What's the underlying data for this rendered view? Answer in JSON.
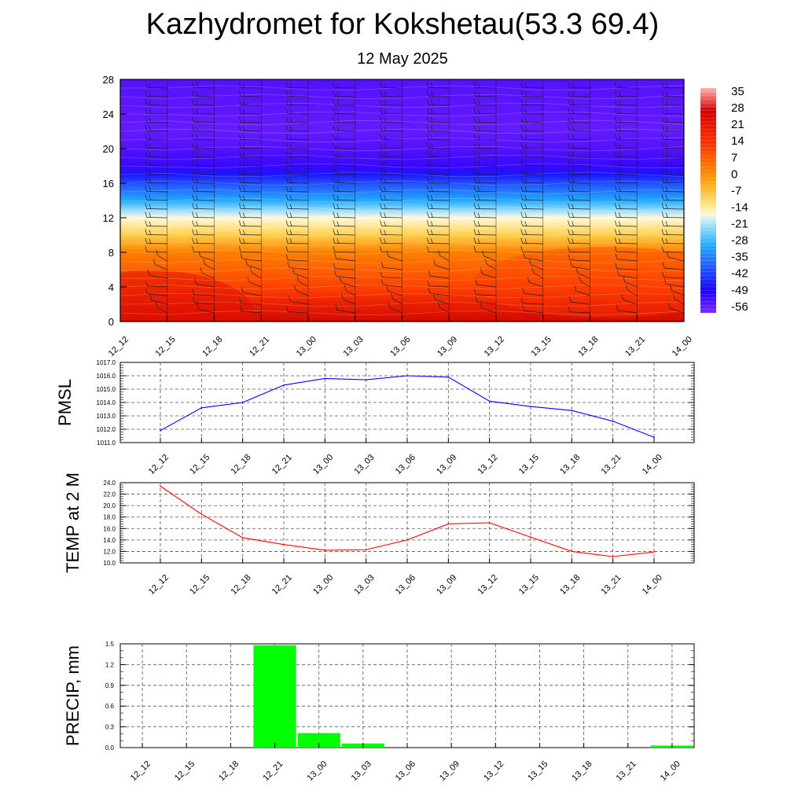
{
  "header": {
    "title": "Kazhydromet for Kokshetau(53.3 69.4)",
    "subtitle": "12 May 2025"
  },
  "time_labels": [
    "12_12",
    "12_15",
    "12_18",
    "12_21",
    "13_00",
    "13_03",
    "13_06",
    "13_09",
    "13_12",
    "13_15",
    "13_18",
    "13_21",
    "14_00"
  ],
  "chart_data": [
    {
      "type": "heatmap",
      "name": "temperature-wind cross-section",
      "x": [
        "12_12",
        "12_15",
        "12_18",
        "12_21",
        "13_00",
        "13_03",
        "13_06",
        "13_09",
        "13_12",
        "13_15",
        "13_18",
        "13_21",
        "14_00"
      ],
      "y_ticks": [
        "0",
        "4",
        "8",
        "12",
        "16",
        "20",
        "24",
        "28"
      ],
      "ylim": [
        0,
        28
      ],
      "colorbar_labels": [
        "35",
        "28",
        "21",
        "14",
        "7",
        "0",
        "-7",
        "-14",
        "-21",
        "-28",
        "-35",
        "-42",
        "-49",
        "-56"
      ],
      "colorbar_range": [
        -63,
        42
      ],
      "levels": [
        {
          "y": 0,
          "t": 28
        },
        {
          "y": 2,
          "t": 24
        },
        {
          "y": 4,
          "t": 18
        },
        {
          "y": 6,
          "t": 14
        },
        {
          "y": 8,
          "t": 10
        },
        {
          "y": 10,
          "t": 3
        },
        {
          "y": 12,
          "t": -6
        },
        {
          "y": 13,
          "t": -12
        },
        {
          "y": 14,
          "t": -20
        },
        {
          "y": 15,
          "t": -27
        },
        {
          "y": 16,
          "t": -34
        },
        {
          "y": 17,
          "t": -42
        },
        {
          "y": 18,
          "t": -50
        },
        {
          "y": 20,
          "t": -55
        },
        {
          "y": 22,
          "t": -58
        },
        {
          "y": 24,
          "t": -57
        },
        {
          "y": 26,
          "t": -56
        },
        {
          "y": 28,
          "t": -55
        }
      ],
      "wind_barbs": true
    },
    {
      "type": "line",
      "ylabel": "PMSL",
      "x": [
        "12_12",
        "12_15",
        "12_18",
        "12_21",
        "13_00",
        "13_03",
        "13_06",
        "13_09",
        "13_12",
        "13_15",
        "13_18",
        "13_21",
        "14_00"
      ],
      "series": [
        {
          "values": [
            1011.9,
            1013.6,
            1014.0,
            1015.3,
            1015.8,
            1015.7,
            1016.0,
            1015.9,
            1014.1,
            1013.7,
            1013.4,
            1012.6,
            1011.4
          ],
          "color": "#0000ff"
        }
      ],
      "ylim": [
        1011.0,
        1017.0
      ],
      "yticks": [
        "1011.0",
        "1012.0",
        "1013.0",
        "1014.0",
        "1015.0",
        "1016.0",
        "1017.0"
      ],
      "grid": true
    },
    {
      "type": "line",
      "ylabel": "TEMP at 2 M",
      "x": [
        "12_12",
        "12_15",
        "12_18",
        "12_21",
        "13_00",
        "13_03",
        "13_06",
        "13_09",
        "13_12",
        "13_15",
        "13_18",
        "13_21",
        "14_00"
      ],
      "series": [
        {
          "values": [
            23.4,
            18.5,
            14.4,
            13.2,
            12.2,
            12.3,
            14.0,
            16.8,
            17.0,
            14.5,
            12.0,
            11.1,
            11.9
          ],
          "color": "#ff0000"
        }
      ],
      "ylim": [
        10.0,
        24.0
      ],
      "yticks": [
        "10.0",
        "12.0",
        "14.0",
        "16.0",
        "18.0",
        "20.0",
        "22.0",
        "24.0"
      ],
      "grid": true
    },
    {
      "type": "bar",
      "ylabel": "PRECIP, mm",
      "categories": [
        "12_12",
        "12_15",
        "12_18",
        "12_21",
        "13_00",
        "13_03",
        "13_06",
        "13_09",
        "13_12",
        "13_15",
        "13_18",
        "13_21",
        "14_00"
      ],
      "values": [
        0,
        0,
        0,
        1.48,
        0.21,
        0.06,
        0,
        0,
        0,
        0,
        0,
        0,
        0.03
      ],
      "color": "#00ff00",
      "ylim": [
        0,
        1.5
      ],
      "yticks": [
        "0.0",
        "0.3",
        "0.6",
        "0.9",
        "1.2",
        "1.5"
      ],
      "grid": true
    }
  ]
}
